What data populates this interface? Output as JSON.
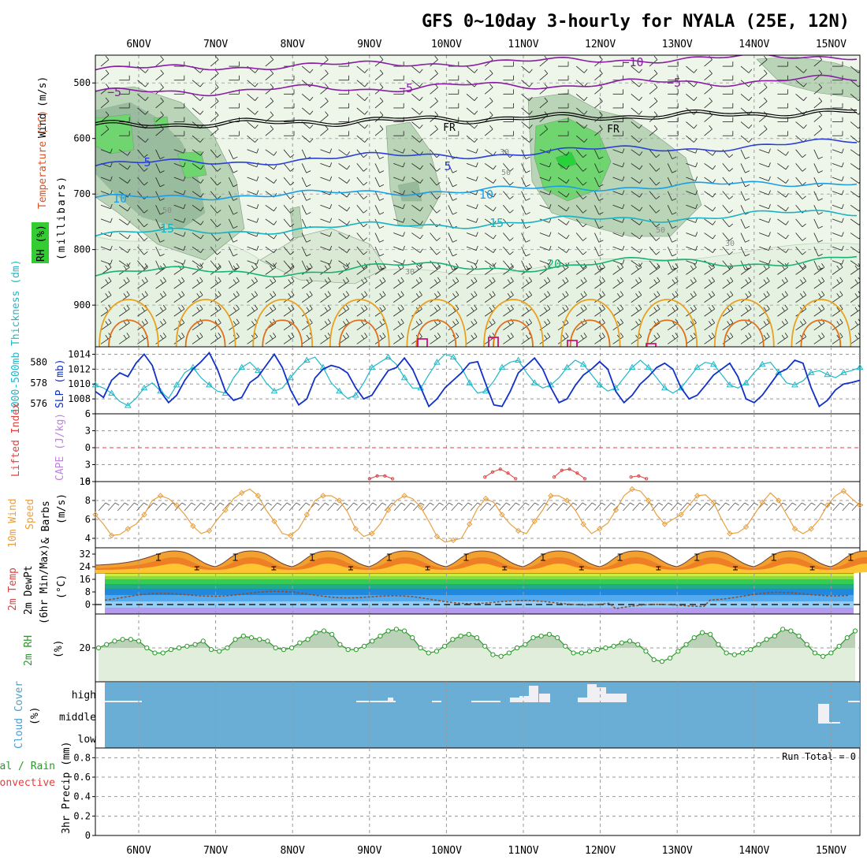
{
  "title": "GFS 0~10day 3-hourly for NYALA (25E, 12N)",
  "dates": [
    "6NOV",
    "7NOV",
    "8NOV",
    "9NOV",
    "10NOV",
    "11NOV",
    "12NOV",
    "13NOV",
    "14NOV",
    "15NOV"
  ],
  "colors": {
    "rh_light": "#e6f2e1",
    "rh_mid": "#b9d4b7",
    "rh_dark": "#7fa98a",
    "rh_green": "#6fd66f",
    "rh_bright": "#27d23a",
    "t_purple": "#8a1ca6",
    "t_blue": "#2b3fd6",
    "t_sky": "#1a9ee6",
    "t_teal": "#17b3c2",
    "t_green": "#16b372",
    "t_orange": "#e8a020",
    "t_deep_orange": "#e0701a",
    "t_magenta": "#d0107a",
    "slp": "#1030c8",
    "thickness": "#20b8c8",
    "lifted": "#e04040",
    "cape": "#c080e0",
    "wind10": "#e8a040",
    "rh2m": "#2a9a2a",
    "cloud": "#6aaed6"
  },
  "panels": {
    "upper": {
      "ylabel_wind": "Wind (m/s)",
      "ylabel_temp": "Temperature (°C)",
      "ylabel_rh": "RH (%)",
      "ylabel_p": "(millibars)",
      "yticks": [
        "500",
        "600",
        "700",
        "800",
        "900"
      ]
    },
    "slp": {
      "ylabel_thick": "1000-500mb Thickness (dm)",
      "ylabel_slp": "SLP (mb)",
      "thick_ticks": [
        "580",
        "578",
        "576"
      ],
      "slp_ticks": [
        "1014",
        "1012",
        "1010",
        "1008"
      ]
    },
    "li": {
      "ylabel_li": "Lifted Index",
      "ylabel_cape": "CAPE (J/kg)",
      "ticks": [
        "6",
        "3",
        "0",
        "3",
        "6"
      ]
    },
    "wind10": {
      "ylabel_a": "10m Wind",
      "ylabel_b": "Speed",
      "ylabel_c": "& Barbs",
      "unit": "(m/s)",
      "ticks": [
        "10",
        "8",
        "6",
        "4"
      ]
    },
    "temp2m": {
      "ylabel_a": "2m Temp",
      "ylabel_b": "2m DewPt",
      "ylabel_c": "(6hr Min/Max)",
      "unit": "(°C)",
      "ticks": [
        "32",
        "24",
        "16",
        "8",
        "0"
      ]
    },
    "rh2m": {
      "ylabel": "2m RH",
      "unit": "(%)",
      "ticks": [
        "20"
      ]
    },
    "cloud": {
      "ylabel": "Cloud Cover",
      "unit": "(%)",
      "ticks": [
        "high",
        "middle",
        "low"
      ]
    },
    "precip": {
      "ylabel_a": "Total / Rain",
      "ylabel_b": "Convective",
      "ylabel_c": "3hr Precip (mm)",
      "ticks": [
        "0.8",
        "0.6",
        "0.4",
        "0.2",
        "0"
      ],
      "run_total": "Run Total = 0"
    }
  },
  "chart_data": [
    {
      "type": "line",
      "panel": "sea-level-pressure",
      "series": [
        {
          "name": "SLP (mb)",
          "ylim": [
            1006,
            1015
          ],
          "values": [
            1009.0,
            1008.2,
            1010.5,
            1011.5,
            1011.0,
            1012.8,
            1014.0,
            1012.5,
            1009.0,
            1007.5,
            1008.5,
            1010.5,
            1012.0,
            1013.0,
            1014.2,
            1012.0,
            1009.0,
            1007.8,
            1008.2,
            1010.2,
            1011.0,
            1012.5,
            1014.0,
            1012.2,
            1009.2,
            1007.2,
            1008.0,
            1010.8,
            1012.0,
            1012.5,
            1012.2,
            1011.5,
            1009.5,
            1008.0,
            1008.5,
            1010.2,
            1011.8,
            1012.2,
            1013.5,
            1012.0,
            1009.5,
            1007.0,
            1008.0,
            1009.5,
            1010.5,
            1011.5,
            1012.8,
            1013.0,
            1010.0,
            1007.2,
            1007.0,
            1009.0,
            1011.5,
            1012.5,
            1013.5,
            1012.0,
            1009.5,
            1007.5,
            1008.0,
            1009.8,
            1011.2,
            1012.0,
            1013.0,
            1012.0,
            1009.0,
            1007.5,
            1008.5,
            1010.0,
            1011.0,
            1012.2,
            1012.8,
            1012.0,
            1009.5,
            1008.0,
            1008.5,
            1009.8,
            1011.2,
            1012.0,
            1012.8,
            1011.0,
            1008.0,
            1007.5,
            1008.5,
            1010.0,
            1011.5,
            1012.0,
            1013.2,
            1012.8,
            1009.5,
            1007.0,
            1007.8,
            1009.2,
            1010.0,
            1010.2,
            1010.5
          ]
        },
        {
          "name": "1000-500mb Thickness (dm)",
          "ylim": [
            575,
            581.5
          ],
          "values": [
            577.8,
            577.5,
            577.0,
            576.2,
            575.8,
            576.5,
            577.5,
            578.0,
            577.2,
            576.5,
            577.8,
            579.0,
            579.5,
            578.5,
            577.8,
            577.2,
            577.0,
            578.5,
            579.5,
            580.0,
            579.2,
            578.0,
            577.2,
            577.5,
            578.5,
            579.5,
            580.2,
            580.5,
            579.5,
            578.0,
            577.2,
            576.5,
            576.8,
            578.0,
            579.5,
            580.0,
            580.5,
            579.8,
            578.5,
            577.5,
            577.5,
            578.8,
            580.0,
            580.8,
            580.5,
            579.5,
            578.0,
            577.0,
            577.2,
            578.2,
            579.5,
            580.0,
            580.2,
            579.0,
            578.0,
            577.5,
            577.8,
            578.5,
            579.5,
            580.2,
            579.8,
            578.8,
            577.8,
            577.2,
            577.5,
            578.5,
            579.5,
            580.2,
            579.5,
            578.5,
            577.5,
            577.0,
            577.5,
            578.5,
            579.5,
            580.0,
            579.8,
            578.8,
            577.8,
            577.5,
            578.0,
            579.0,
            579.8,
            580.0,
            579.0,
            578.0,
            577.8,
            578.2,
            579.0,
            579.2,
            578.8,
            578.5,
            579.0,
            579.2,
            579.5
          ]
        }
      ]
    },
    {
      "type": "line",
      "panel": "lifted-index",
      "ylim": [
        6,
        -6
      ],
      "series": [
        {
          "name": "Lifted Index",
          "points": [
            [
              3.0,
              5.5
            ],
            [
              3.1,
              5.0
            ],
            [
              3.2,
              5.0
            ],
            [
              3.3,
              5.5
            ],
            [
              4.5,
              5.2
            ],
            [
              4.6,
              4.3
            ],
            [
              4.7,
              3.8
            ],
            [
              4.8,
              4.5
            ],
            [
              4.9,
              5.5
            ],
            [
              5.4,
              5.2
            ],
            [
              5.5,
              4.0
            ],
            [
              5.6,
              3.8
            ],
            [
              5.7,
              4.5
            ],
            [
              5.8,
              5.5
            ],
            [
              6.4,
              5.2
            ],
            [
              6.5,
              5.0
            ],
            [
              6.6,
              5.5
            ]
          ]
        }
      ]
    },
    {
      "type": "line",
      "panel": "10m-wind-speed",
      "ylim": [
        3,
        10
      ],
      "series": [
        {
          "name": "10m Wind Speed (m/s)",
          "values": [
            6.5,
            5.5,
            4.3,
            4.4,
            5.0,
            5.5,
            6.5,
            8.0,
            8.5,
            8.2,
            7.5,
            6.5,
            5.3,
            4.5,
            4.8,
            6.0,
            7.0,
            8.2,
            8.8,
            9.2,
            8.5,
            7.0,
            5.8,
            4.5,
            4.3,
            5.0,
            6.5,
            8.0,
            8.5,
            8.5,
            8.0,
            6.8,
            5.0,
            4.2,
            4.5,
            5.5,
            7.0,
            8.0,
            8.5,
            8.2,
            7.3,
            5.8,
            4.2,
            3.6,
            3.8,
            4.0,
            5.5,
            7.2,
            8.2,
            7.8,
            6.5,
            5.5,
            4.8,
            4.5,
            5.8,
            7.0,
            8.5,
            8.5,
            8.0,
            7.0,
            5.5,
            4.5,
            5.0,
            5.6,
            7.0,
            8.5,
            9.2,
            9.0,
            8.0,
            6.5,
            5.5,
            6.0,
            6.5,
            7.5,
            8.5,
            8.6,
            7.8,
            6.0,
            4.5,
            4.6,
            5.2,
            6.5,
            7.8,
            8.8,
            8.0,
            6.5,
            5.0,
            4.5,
            5.0,
            6.0,
            7.5,
            8.5,
            9.0,
            8.2,
            7.5
          ]
        }
      ]
    },
    {
      "type": "line",
      "panel": "2m-relative-humidity",
      "ylim": [
        0,
        40
      ],
      "series": [
        {
          "name": "2m RH (%)",
          "values": [
            20,
            22,
            24,
            25,
            25,
            24,
            20,
            17,
            17,
            19,
            20,
            21,
            22,
            24,
            19,
            18,
            20,
            25,
            27,
            26,
            25,
            24,
            20,
            19,
            20,
            23,
            25,
            29,
            30,
            28,
            22,
            19,
            19,
            21,
            24,
            27,
            30,
            31,
            30,
            26,
            20,
            17,
            18,
            21,
            25,
            27,
            28,
            26,
            21,
            16,
            15,
            17,
            20,
            22,
            26,
            27,
            28,
            26,
            21,
            17,
            17,
            18,
            19,
            20,
            21,
            23,
            24,
            22,
            18,
            13,
            12,
            14,
            18,
            22,
            26,
            29,
            28,
            22,
            17,
            16,
            17,
            19,
            22,
            25,
            27,
            31,
            30,
            27,
            22,
            17,
            15,
            17,
            21,
            26,
            30
          ]
        }
      ]
    },
    {
      "type": "bar",
      "panel": "cloud-cover",
      "series": [
        {
          "name": "Cloud Cover (%)",
          "x_days": [
            0.0,
            0.25,
            3.3,
            3.4,
            3.5,
            5.3,
            5.4,
            5.5,
            5.6,
            5.7,
            6.0,
            6.1,
            6.2,
            6.3,
            6.4,
            8.8,
            8.9
          ]
        }
      ]
    },
    {
      "type": "bar",
      "panel": "3hr-precip",
      "ylim": [
        0,
        0.9
      ],
      "series": [
        {
          "name": "3hr Precip (mm)",
          "values": []
        }
      ]
    }
  ]
}
